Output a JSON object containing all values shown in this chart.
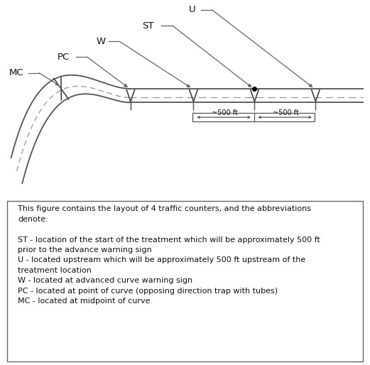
{
  "fig_width": 5.21,
  "fig_height": 5.14,
  "dpi": 100,
  "bg_color": "#ffffff",
  "road_color": "#555555",
  "dashed_color": "#999999",
  "arrow_color": "#666666",
  "text_color": "#111111",
  "counter_color": "#444444",
  "caption_text": "This figure contains the layout of 4 traffic counters, and the abbreviations\ndenote:\n\nST - location of the start of the treatment which will be approximately 500 ft\nprior to the advance warning sign\nU - located upstream which will be approximately 500 ft upstream of the\ntreatment location\nW - located at advanced curve warning sign\nPC - located at point of curve (opposing direction trap with tubes)\nMC - located at midpoint of curve",
  "dist_label": "~500 ft"
}
